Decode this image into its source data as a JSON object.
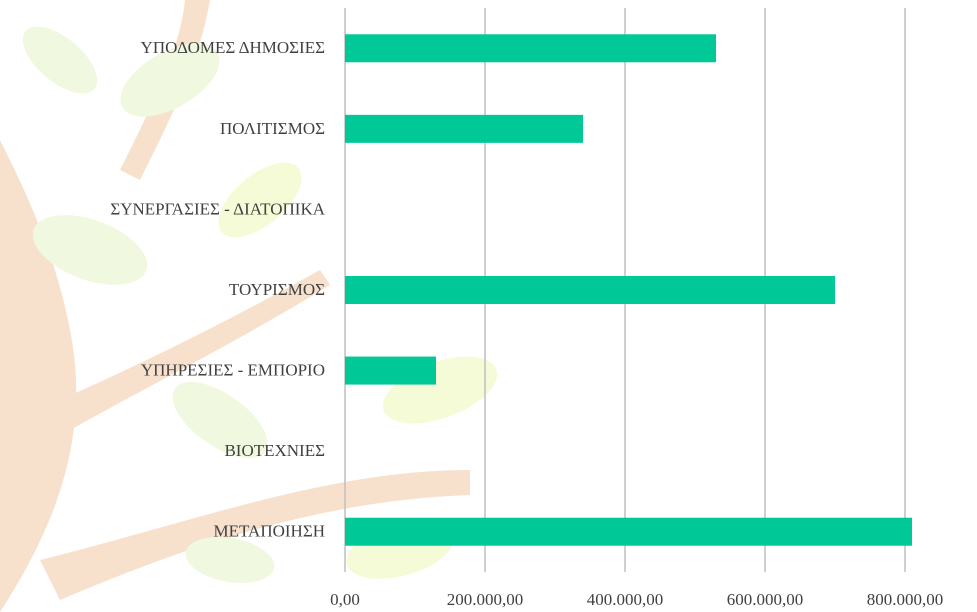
{
  "chart_data": {
    "type": "hbar",
    "categories": [
      "ΥΠΟΔΟΜΕΣ ΔΗΜΟΣΙΕΣ",
      "ΠΟΛΙΤΙΣΜΟΣ",
      "ΣΥΝΕΡΓΑΣΙΕΣ - ΔΙΑΤΟΠΙΚΑ",
      "ΤΟΥΡΙΣΜΟΣ",
      "ΥΠΗΡΕΣΙΕΣ - ΕΜΠΟΡΙΟ",
      "ΒΙΟΤΕΧΝΙΕΣ",
      "ΜΕΤΑΠΟΙΗΣΗ"
    ],
    "values": [
      530000,
      340000,
      0,
      700000,
      130000,
      0,
      810000
    ],
    "color": "#00c896",
    "xlim": [
      0,
      900000
    ],
    "xticks": [
      {
        "value": 0,
        "label": "0,00"
      },
      {
        "value": 200000,
        "label": "200.000,00"
      },
      {
        "value": 400000,
        "label": "400.000,00"
      },
      {
        "value": 600000,
        "label": "600.000,00"
      },
      {
        "value": 800000,
        "label": "800.000,00"
      }
    ],
    "grid": true
  }
}
